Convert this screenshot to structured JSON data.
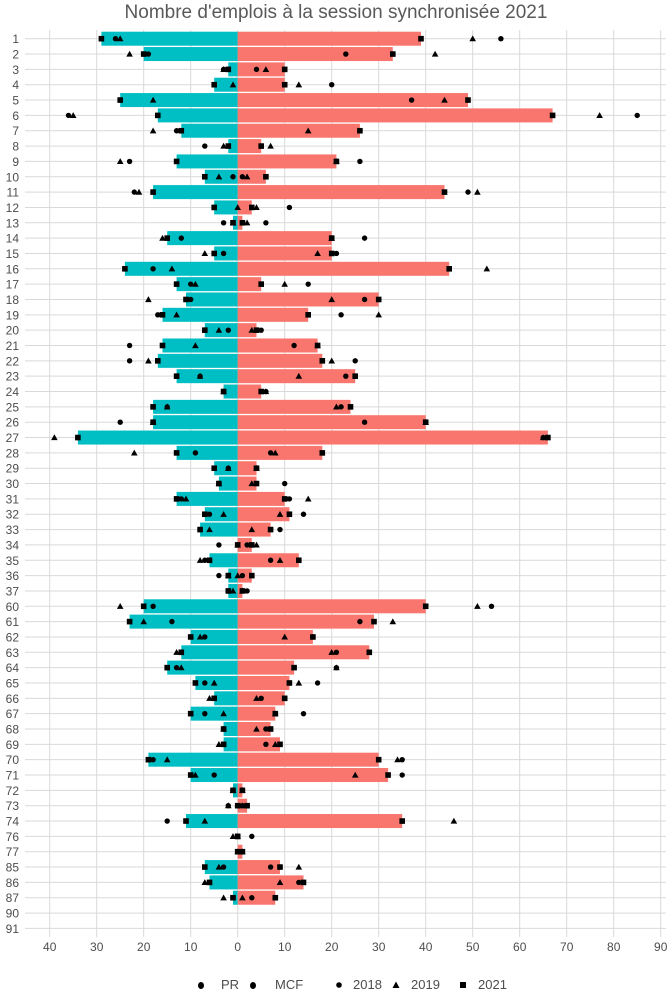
{
  "chart_data": {
    "type": "bar",
    "orientation": "horizontal-diverging",
    "title": "Nombre d'emplois à la session synchronisée 2021",
    "xlabel": "",
    "ylabel": "",
    "xlim": [
      -45,
      91
    ],
    "x_ticks": [
      -40,
      -30,
      -20,
      -10,
      0,
      10,
      20,
      30,
      40,
      50,
      60,
      70,
      80,
      90
    ],
    "x_tick_labels": [
      "40",
      "30",
      "20",
      "10",
      "0",
      "10",
      "20",
      "30",
      "40",
      "50",
      "60",
      "70",
      "80",
      "90"
    ],
    "grid": true,
    "legend_position": "bottom",
    "colors": {
      "PR": "#00BFC4",
      "MCF": "#F8766D",
      "marks": "#000000",
      "grid": "#d9d9d9",
      "text": "#4d4d4d"
    },
    "bar_legend": [
      {
        "name": "PR",
        "color": "#00BFC4"
      },
      {
        "name": "MCF",
        "color": "#F8766D"
      }
    ],
    "shape_legend": [
      {
        "name": "2018",
        "shape": "circle"
      },
      {
        "name": "2019",
        "shape": "triangle"
      },
      {
        "name": "2021",
        "shape": "square"
      }
    ],
    "categories": [
      "1",
      "2",
      "3",
      "4",
      "5",
      "6",
      "7",
      "8",
      "9",
      "10",
      "11",
      "12",
      "13",
      "14",
      "15",
      "16",
      "17",
      "18",
      "19",
      "20",
      "21",
      "22",
      "23",
      "24",
      "25",
      "26",
      "27",
      "28",
      "29",
      "30",
      "31",
      "32",
      "33",
      "34",
      "35",
      "36",
      "37",
      "60",
      "61",
      "62",
      "63",
      "64",
      "65",
      "66",
      "67",
      "68",
      "69",
      "70",
      "71",
      "72",
      "73",
      "74",
      "76",
      "77",
      "85",
      "86",
      "87",
      "90",
      "91"
    ],
    "series": [
      {
        "name": "PR",
        "year": "2021",
        "side": "left",
        "values": [
          29,
          20,
          2,
          5,
          25,
          17,
          12,
          2,
          13,
          7,
          18,
          5,
          1,
          15,
          5,
          24,
          13,
          11,
          16,
          7,
          16,
          17,
          13,
          3,
          18,
          18,
          34,
          13,
          5,
          4,
          13,
          7,
          8,
          0,
          6,
          2,
          2,
          20,
          23,
          10,
          12,
          15,
          9,
          5,
          10,
          3,
          3,
          19,
          10,
          1,
          0,
          11,
          0,
          0,
          7,
          6,
          1,
          0,
          0
        ]
      },
      {
        "name": "MCF",
        "year": "2021",
        "side": "right",
        "values": [
          39,
          33,
          10,
          10,
          49,
          67,
          26,
          5,
          21,
          6,
          44,
          3,
          1,
          20,
          20,
          45,
          5,
          30,
          15,
          4,
          17,
          18,
          25,
          5,
          24,
          40,
          66,
          18,
          4,
          4,
          10,
          11,
          7,
          3,
          13,
          3,
          1,
          40,
          29,
          16,
          28,
          12,
          11,
          10,
          8,
          7,
          9,
          30,
          32,
          1,
          2,
          35,
          0,
          1,
          9,
          14,
          8,
          0,
          0
        ]
      },
      {
        "name": "PR",
        "year": "2018",
        "side": "left",
        "values": [
          26,
          19,
          3,
          5,
          25,
          36,
          13,
          7,
          23,
          1,
          22,
          5,
          3,
          12,
          3,
          18,
          10,
          10,
          17,
          2,
          23,
          23,
          8,
          3,
          15,
          25,
          34,
          9,
          2,
          4,
          12,
          6,
          8,
          4,
          7,
          4,
          2,
          18,
          14,
          7,
          12,
          13,
          7,
          5,
          7,
          3,
          3,
          18,
          5,
          1,
          2,
          15,
          0,
          0,
          3,
          6,
          1,
          null,
          null
        ]
      },
      {
        "name": "PR",
        "year": "2019",
        "side": "left",
        "values": [
          25,
          23,
          3,
          1,
          18,
          35,
          18,
          3,
          25,
          4,
          21,
          0,
          1,
          16,
          7,
          14,
          9,
          19,
          13,
          4,
          9,
          19,
          8,
          3,
          15,
          18,
          39,
          22,
          2,
          4,
          11,
          3,
          6,
          0,
          8,
          2,
          1,
          25,
          20,
          8,
          13,
          12,
          5,
          6,
          3,
          3,
          4,
          15,
          9,
          1,
          2,
          7,
          1,
          0,
          4,
          7,
          3,
          null,
          null
        ]
      },
      {
        "name": "MCF",
        "year": "2018",
        "side": "right",
        "values": [
          56,
          23,
          4,
          20,
          37,
          85,
          26,
          5,
          26,
          1,
          49,
          11,
          6,
          27,
          21,
          45,
          15,
          27,
          22,
          5,
          12,
          25,
          23,
          6,
          22,
          27,
          65,
          7,
          4,
          10,
          11,
          14,
          9,
          2,
          7,
          1,
          2,
          54,
          26,
          16,
          21,
          21,
          17,
          5,
          14,
          6,
          6,
          35,
          35,
          1,
          1,
          35,
          3,
          0,
          7,
          13,
          3,
          null,
          null
        ]
      },
      {
        "name": "MCF",
        "year": "2019",
        "side": "right",
        "values": [
          50,
          42,
          6,
          13,
          44,
          77,
          15,
          7,
          21,
          2,
          51,
          4,
          2,
          20,
          17,
          53,
          10,
          20,
          30,
          3,
          17,
          20,
          13,
          6,
          21,
          40,
          65,
          8,
          4,
          3,
          15,
          9,
          3,
          4,
          9,
          0,
          1,
          51,
          33,
          10,
          20,
          21,
          13,
          4,
          8,
          4,
          8,
          34,
          25,
          1,
          1,
          46,
          0,
          1,
          13,
          9,
          1,
          null,
          null
        ]
      }
    ]
  }
}
